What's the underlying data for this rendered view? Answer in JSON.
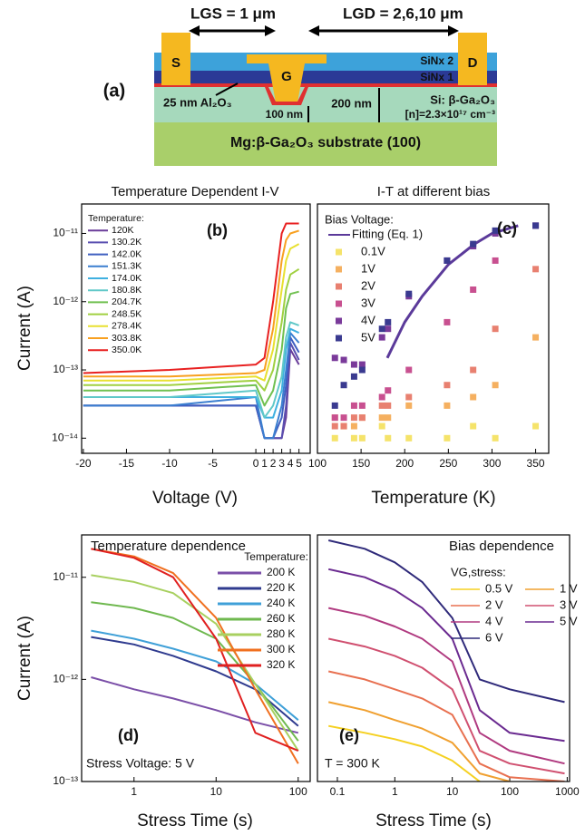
{
  "diagram": {
    "panel_label": "(a)",
    "lgs": "LGS = 1 μm",
    "lgd": "LGD = 2,6,10 μm",
    "source": "S",
    "drain": "D",
    "gate": "G",
    "sinx2": "SiNx 2",
    "sinx1": "SiNx 1",
    "oxide": "25 nm Al₂O₃",
    "channel": "Si: β-Ga₂O₃",
    "doping": "[n]=2.3×10¹⁷ cm⁻³",
    "depth1": "200 nm",
    "depth2": "100 nm",
    "substrate": "Mg:β-Ga₂O₃ substrate (100)"
  },
  "chart_data": [
    {
      "type": "line",
      "title": "Temperature Dependent I-V",
      "xlabel": "Voltage (V)",
      "ylabel": "Current (A)",
      "log_y": true,
      "annotations": [
        "(b)"
      ],
      "legend_title": "Temperature:",
      "xlim": [
        -20.2,
        6.3
      ],
      "xticks": [
        -20,
        -15,
        -10,
        -5,
        0,
        1,
        2,
        3,
        4,
        5
      ],
      "ylim": [
        6e-15,
        2.7e-11
      ],
      "yticks": [
        {
          "value": 1e-14,
          "label": "10⁻¹⁴"
        },
        {
          "value": 1e-13,
          "label": "10⁻¹³"
        },
        {
          "value": 1e-12,
          "label": "10⁻¹²"
        },
        {
          "value": 1e-11,
          "label": "10⁻¹¹"
        }
      ],
      "x": [
        -20,
        -10,
        0,
        1,
        2,
        3,
        3.5,
        4,
        5
      ],
      "series": [
        {
          "name": "120K",
          "color": "#6a3d9a",
          "values": [
            3e-14,
            3e-14,
            3e-14,
            1e-14,
            1e-14,
            1e-14,
            2e-14,
            2e-13,
            1.2e-13
          ]
        },
        {
          "name": "130.2K",
          "color": "#5a4fb0",
          "values": [
            3e-14,
            3e-14,
            3e-14,
            1e-14,
            1e-14,
            1e-14,
            3e-14,
            2.5e-13,
            1.4e-13
          ]
        },
        {
          "name": "142.0K",
          "color": "#3f5fc0",
          "values": [
            3e-14,
            3e-14,
            3e-14,
            1e-14,
            1e-14,
            2e-14,
            6e-14,
            3e-13,
            1.8e-13
          ]
        },
        {
          "name": "151.3K",
          "color": "#3b7fd0",
          "values": [
            3e-14,
            3e-14,
            4e-14,
            1e-14,
            1e-14,
            3e-14,
            1e-13,
            3.5e-13,
            2.5e-13
          ]
        },
        {
          "name": "174.0K",
          "color": "#3fb0e0",
          "values": [
            4e-14,
            4e-14,
            4e-14,
            2e-14,
            2e-14,
            5e-14,
            2e-13,
            4e-13,
            3.5e-13
          ]
        },
        {
          "name": "180.8K",
          "color": "#60c8c8",
          "values": [
            4e-14,
            4e-14,
            5e-14,
            2e-14,
            3e-14,
            8e-14,
            3e-13,
            5e-13,
            4.5e-13
          ]
        },
        {
          "name": "204.7K",
          "color": "#70c050",
          "values": [
            5e-14,
            5e-14,
            6e-14,
            3e-14,
            5e-14,
            2e-13,
            8e-13,
            1.3e-12,
            1.4e-12
          ]
        },
        {
          "name": "248.5K",
          "color": "#a0d040",
          "values": [
            6e-14,
            6e-14,
            7e-14,
            5e-14,
            1e-13,
            5e-13,
            1.5e-12,
            2.5e-12,
            3e-12
          ]
        },
        {
          "name": "278.4K",
          "color": "#e8e030",
          "values": [
            7e-14,
            7e-14,
            8e-14,
            7e-14,
            2e-13,
            1.5e-12,
            4e-12,
            6e-12,
            7e-12
          ]
        },
        {
          "name": "303.8K",
          "color": "#f8a020",
          "values": [
            8e-14,
            8e-14,
            9e-14,
            1e-13,
            4e-13,
            4e-12,
            8e-12,
            1e-11,
            1.1e-11
          ]
        },
        {
          "name": "350.0K",
          "color": "#e82020",
          "values": [
            9e-14,
            1e-13,
            1.2e-13,
            1.5e-13,
            1e-12,
            1e-11,
            1.4e-11,
            1.4e-11,
            1.4e-11
          ]
        }
      ]
    },
    {
      "type": "scatter",
      "title": "I-T at different bias",
      "xlabel": "Temperature (K)",
      "log_y": true,
      "annotations": [
        "(c)"
      ],
      "legend_title": "Bias Voltage:",
      "xlim": [
        100,
        365
      ],
      "xticks": [
        100,
        150,
        200,
        250,
        300,
        350
      ],
      "ylim": [
        6e-15,
        2.7e-11
      ],
      "series": [
        {
          "name": "Fitting (Eq. 1)",
          "style": "line",
          "color": "#5b3a9a",
          "x": [
            180,
            200,
            220,
            250,
            280,
            300,
            330
          ],
          "values": [
            1.5e-13,
            5e-13,
            1.2e-12,
            3.5e-12,
            7e-12,
            1e-11,
            1.3e-11
          ]
        },
        {
          "name": "0.1V",
          "color": "#f5e36a",
          "x": [
            120,
            130.2,
            142,
            151.3,
            174,
            180.8,
            204.7,
            248.5,
            278.4,
            303.8,
            350
          ],
          "values": [
            1e-14,
            1.5e-14,
            1e-14,
            1e-14,
            1.5e-14,
            1e-14,
            1e-14,
            1e-14,
            1.5e-14,
            1e-14,
            1.5e-14
          ]
        },
        {
          "name": "1V",
          "color": "#f5b060",
          "x": [
            120,
            130.2,
            142,
            151.3,
            174,
            180.8,
            204.7,
            248.5,
            278.4,
            303.8,
            350
          ],
          "values": [
            2e-14,
            1.5e-14,
            1.5e-14,
            2e-14,
            2e-14,
            2e-14,
            3e-14,
            3e-14,
            4e-14,
            6e-14,
            3e-13
          ]
        },
        {
          "name": "2V",
          "color": "#e88070",
          "x": [
            120,
            130.2,
            142,
            151.3,
            174,
            180.8,
            204.7,
            248.5,
            278.4,
            303.8,
            350
          ],
          "values": [
            1.5e-14,
            1.5e-14,
            2e-14,
            2e-14,
            3e-14,
            3e-14,
            4e-14,
            6e-14,
            1e-13,
            4e-13,
            3e-12
          ]
        },
        {
          "name": "3V",
          "color": "#c85090",
          "x": [
            120,
            130.2,
            142,
            151.3,
            174,
            180.8,
            204.7,
            248.5,
            278.4,
            303.8,
            350
          ],
          "values": [
            2e-14,
            2e-14,
            3e-14,
            3e-14,
            4e-14,
            5e-14,
            1e-13,
            5e-13,
            1.5e-12,
            4e-12,
            1.3e-11
          ]
        },
        {
          "name": "4V",
          "color": "#7a3a9a",
          "x": [
            120,
            130.2,
            142,
            151.3,
            174,
            180.8,
            204.7,
            248.5,
            278.4,
            303.8,
            350
          ],
          "values": [
            1.5e-13,
            1.4e-13,
            1.2e-13,
            1.2e-13,
            3e-13,
            4e-13,
            1.2e-12,
            4e-12,
            6.5e-12,
            1e-11,
            1.3e-11
          ]
        },
        {
          "name": "5V",
          "color": "#3a3a90",
          "x": [
            120,
            130.2,
            142,
            151.3,
            174,
            180.8,
            204.7,
            248.5,
            278.4,
            303.8,
            350
          ],
          "values": [
            3e-14,
            6e-14,
            8e-14,
            1e-13,
            4e-13,
            5e-13,
            1.3e-12,
            4e-12,
            7e-12,
            1.1e-11,
            1.3e-11
          ]
        }
      ]
    },
    {
      "type": "line",
      "xlabel": "Stress Time (s)",
      "ylabel": "Current (A)",
      "log_x": true,
      "log_y": true,
      "annotations": [
        "Temperature dependence",
        "(d)",
        "Stress Voltage: 5 V"
      ],
      "legend_title": "Temperature:",
      "xlim": [
        0.23,
        140
      ],
      "xticks": [
        1,
        10,
        100
      ],
      "ylim": [
        1e-13,
        2.6e-11
      ],
      "yticks": [
        {
          "value": 1e-13,
          "label": "10⁻¹³"
        },
        {
          "value": 1e-12,
          "label": "10⁻¹²"
        },
        {
          "value": 1e-11,
          "label": "10⁻¹¹"
        }
      ],
      "x": [
        0.3,
        1,
        3,
        10,
        30,
        100
      ],
      "series": [
        {
          "name": "200 K",
          "color": "#7b4fa8",
          "values": [
            1.05e-12,
            8e-13,
            6.5e-13,
            5e-13,
            3.8e-13,
            3e-13
          ]
        },
        {
          "name": "220 K",
          "color": "#2f3b8f",
          "values": [
            2.6e-12,
            2.2e-12,
            1.7e-12,
            1.2e-12,
            8e-13,
            3.5e-13
          ]
        },
        {
          "name": "240 K",
          "color": "#3fa0d8",
          "values": [
            3e-12,
            2.5e-12,
            2e-12,
            1.5e-12,
            9e-13,
            4e-13
          ]
        },
        {
          "name": "260 K",
          "color": "#6fb84f",
          "values": [
            5.7e-12,
            5e-12,
            4e-12,
            2.5e-12,
            9e-13,
            2.5e-13
          ]
        },
        {
          "name": "280 K",
          "color": "#a8d060",
          "values": [
            1.05e-11,
            9e-12,
            7e-12,
            3.5e-12,
            9e-13,
            2e-13
          ]
        },
        {
          "name": "300 K",
          "color": "#f07020",
          "values": [
            1.9e-11,
            1.6e-11,
            1.1e-11,
            4e-12,
            8e-13,
            1.5e-13
          ]
        },
        {
          "name": "320 K",
          "color": "#e02020",
          "values": [
            1.9e-11,
            1.55e-11,
            1e-11,
            2.5e-12,
            3e-13,
            2e-13
          ]
        }
      ]
    },
    {
      "type": "line",
      "xlabel": "Stress Time (s)",
      "log_x": true,
      "log_y": true,
      "annotations": [
        "Bias dependence",
        "(e)",
        "T = 300 K"
      ],
      "legend_title": "VG,stress:",
      "xlim": [
        0.045,
        1100
      ],
      "xticks": [
        0.1,
        1,
        10,
        100,
        1000
      ],
      "ylim": [
        1e-13,
        2.6e-11
      ],
      "x": [
        0.07,
        0.3,
        1,
        3,
        10,
        30,
        100,
        900
      ],
      "series": [
        {
          "name": "0.5 V",
          "color": "#f5d020",
          "values": [
            3.5e-13,
            3e-13,
            2.6e-13,
            2.2e-13,
            1.6e-13,
            1e-13,
            null,
            null
          ]
        },
        {
          "name": "1 V",
          "color": "#f0a030",
          "values": [
            6e-13,
            5e-13,
            4e-13,
            3.3e-13,
            2.4e-13,
            1.2e-13,
            1e-13,
            null
          ]
        },
        {
          "name": "2 V",
          "color": "#e87050",
          "values": [
            1.2e-12,
            1e-12,
            8e-13,
            6.5e-13,
            4.5e-13,
            1.5e-13,
            1.1e-13,
            1e-13
          ]
        },
        {
          "name": "3 V",
          "color": "#d05070",
          "values": [
            2.5e-12,
            2.1e-12,
            1.7e-12,
            1.3e-12,
            8e-13,
            2e-13,
            1.5e-13,
            1.2e-13
          ]
        },
        {
          "name": "4 V",
          "color": "#b03a80",
          "values": [
            5e-12,
            4.2e-12,
            3.3e-12,
            2.5e-12,
            1.5e-12,
            3e-13,
            2e-13,
            1.5e-13
          ]
        },
        {
          "name": "5 V",
          "color": "#6a2a90",
          "values": [
            1.2e-11,
            1e-11,
            7.5e-12,
            5e-12,
            2.5e-12,
            5e-13,
            3e-13,
            2.5e-13
          ]
        },
        {
          "name": "6 V",
          "color": "#2f2a7a",
          "values": [
            2.3e-11,
            1.9e-11,
            1.4e-11,
            9e-12,
            4e-12,
            1e-12,
            8e-13,
            6e-13
          ]
        }
      ]
    }
  ]
}
